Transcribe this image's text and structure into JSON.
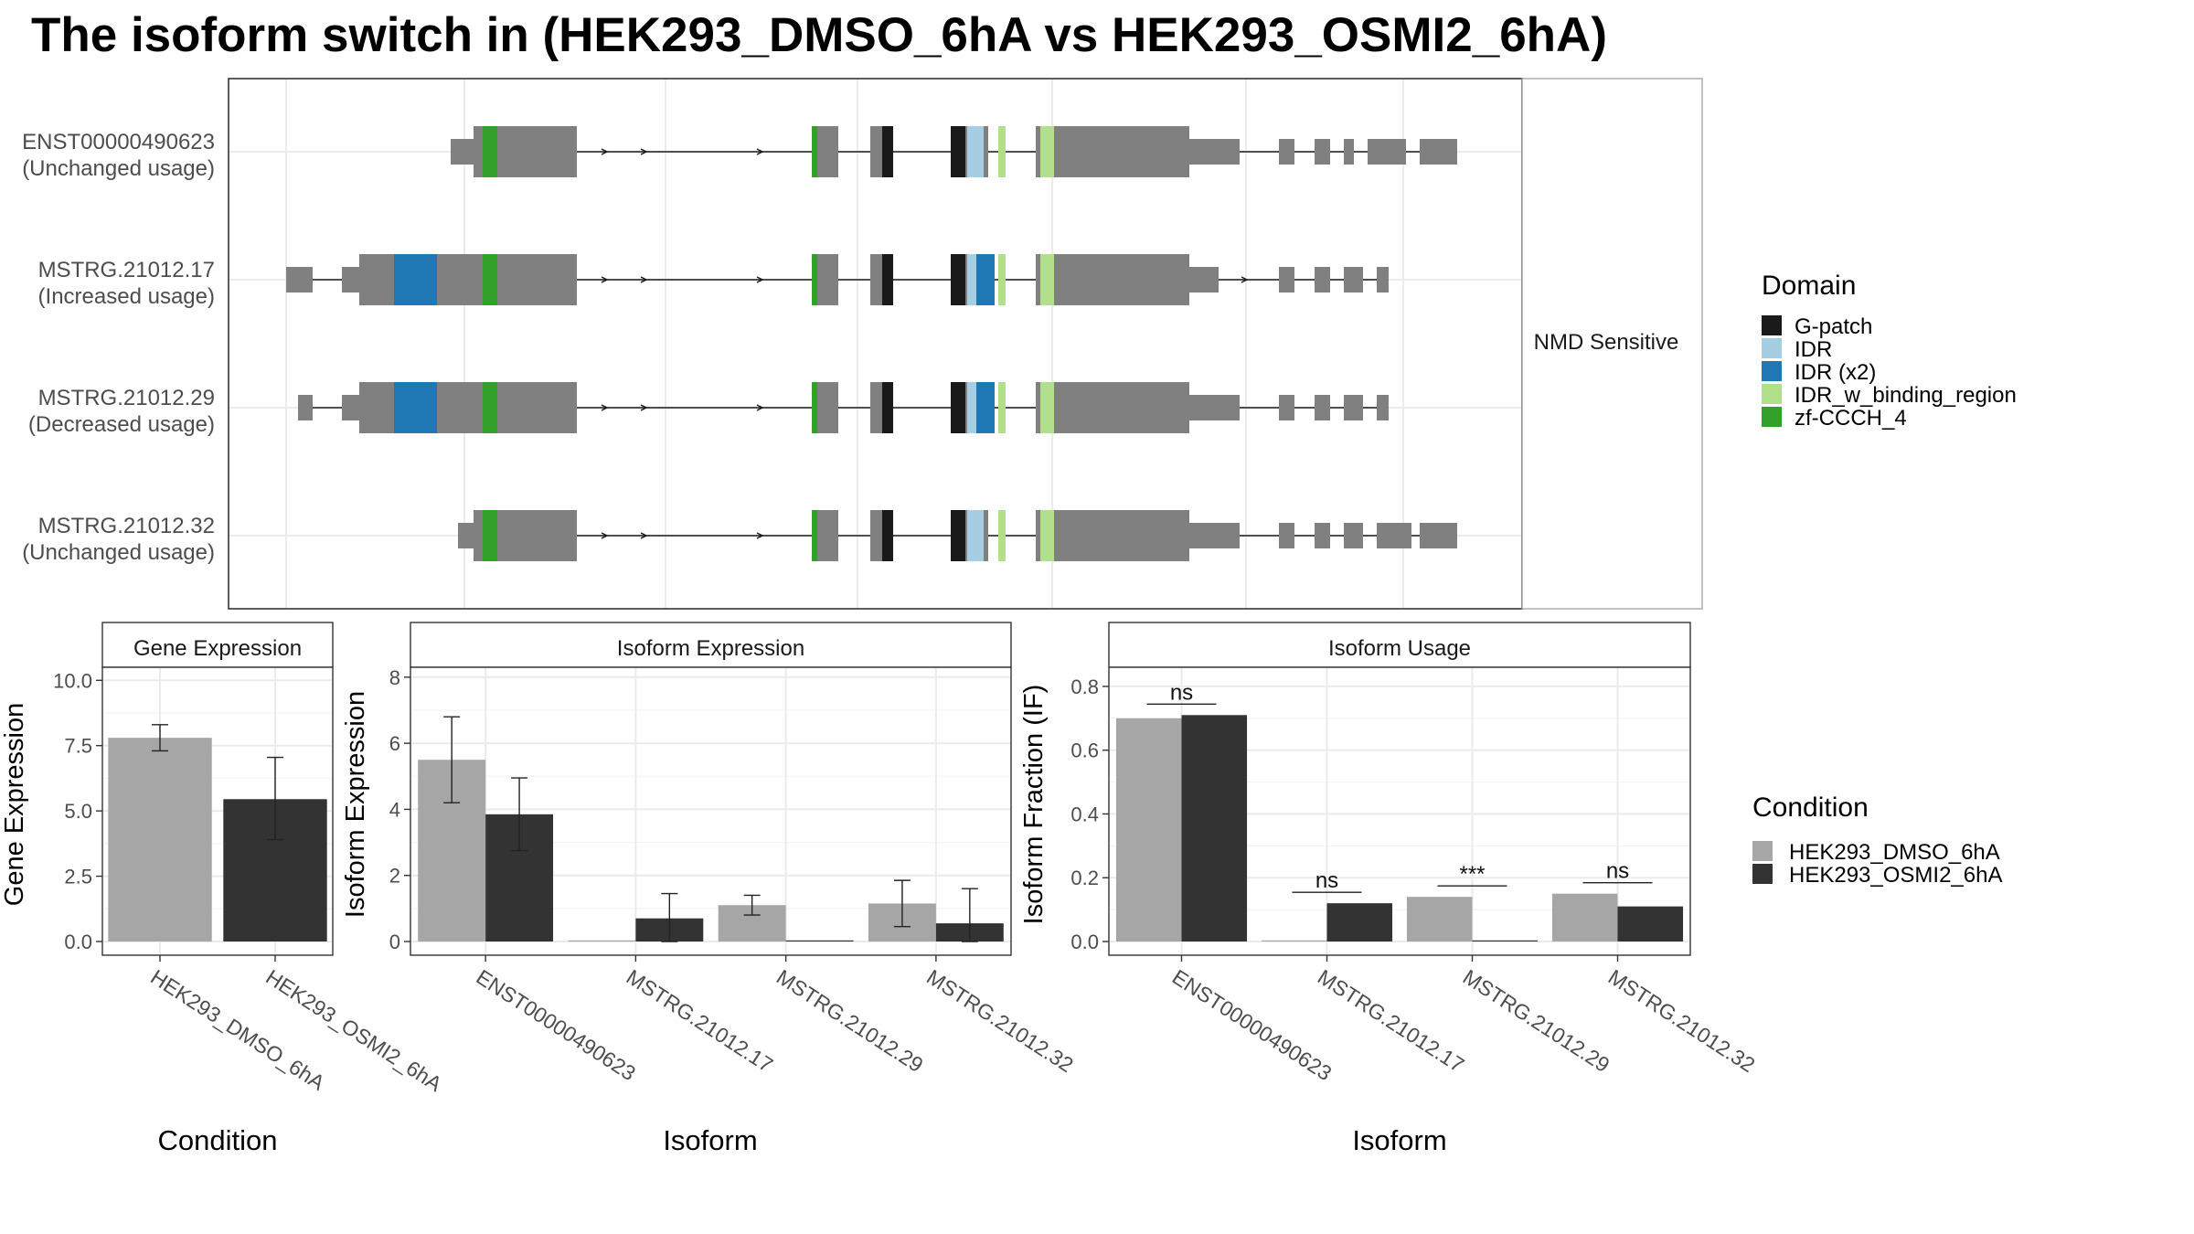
{
  "title": "The isoform switch in  (HEK293_DMSO_6hA vs HEK293_OSMI2_6hA)",
  "colors": {
    "exon": "#808080",
    "G-patch": "#1a1a1a",
    "IDR": "#a6cee3",
    "IDR (x2)": "#1f78b4",
    "IDR_w_binding_region": "#b2df8a",
    "zf-CCCH_4": "#33a02c",
    "cond1": "#a6a6a6",
    "cond2": "#333333"
  },
  "chart_data": [
    {
      "type": "gene-structure",
      "strip_label": "NMD Sensitive",
      "legend_title": "Domain",
      "legend": [
        "G-patch",
        "IDR",
        "IDR (x2)",
        "IDR_w_binding_region",
        "zf-CCCH_4"
      ],
      "transcripts": [
        {
          "id": "ENST00000490623",
          "usage": "(Unchanged usage)",
          "exons": [
            {
              "s": 180,
              "e": 205,
              "h": "u"
            },
            {
              "s": 205,
              "e": 318,
              "h": "c"
            },
            {
              "s": 575,
              "e": 604,
              "h": "c"
            },
            {
              "s": 639,
              "e": 664,
              "h": "c"
            },
            {
              "s": 727,
              "e": 768,
              "h": "c"
            },
            {
              "s": 820,
              "e": 874,
              "h": "c"
            },
            {
              "s": 874,
              "e": 896,
              "h": "c"
            },
            {
              "s": 896,
              "e": 988,
              "h": "c"
            },
            {
              "s": 988,
              "e": 1043,
              "h": "u"
            },
            {
              "s": 1086,
              "e": 1103,
              "h": "u"
            },
            {
              "s": 1125,
              "e": 1142,
              "h": "u"
            },
            {
              "s": 1157,
              "e": 1168,
              "h": "u"
            },
            {
              "s": 1183,
              "e": 1225,
              "h": "u"
            },
            {
              "s": 1240,
              "e": 1281,
              "h": "u"
            }
          ],
          "domains": [
            {
              "s": 215,
              "e": 231,
              "n": "zf-CCCH_4"
            },
            {
              "s": 575,
              "e": 581,
              "n": "zf-CCCH_4"
            },
            {
              "s": 652,
              "e": 664,
              "n": "G-patch"
            },
            {
              "s": 727,
              "e": 743,
              "n": "G-patch"
            },
            {
              "s": 745,
              "e": 763,
              "n": "IDR"
            },
            {
              "s": 779,
              "e": 787,
              "n": "IDR_w_binding_region"
            },
            {
              "s": 825,
              "e": 840,
              "n": "IDR_w_binding_region"
            }
          ],
          "arrows": [
            270,
            308,
            350,
            393,
            520
          ]
        },
        {
          "id": "MSTRG.21012.17",
          "usage": "(Increased usage)",
          "exons": [
            {
              "s": 0,
              "e": 29,
              "h": "u"
            },
            {
              "s": 61,
              "e": 80,
              "h": "u"
            },
            {
              "s": 80,
              "e": 318,
              "h": "c"
            },
            {
              "s": 575,
              "e": 604,
              "h": "c"
            },
            {
              "s": 639,
              "e": 664,
              "h": "c"
            },
            {
              "s": 727,
              "e": 768,
              "h": "c"
            },
            {
              "s": 820,
              "e": 874,
              "h": "c"
            },
            {
              "s": 874,
              "e": 896,
              "h": "c"
            },
            {
              "s": 896,
              "e": 988,
              "h": "c"
            },
            {
              "s": 988,
              "e": 1020,
              "h": "u"
            },
            {
              "s": 1086,
              "e": 1103,
              "h": "u"
            },
            {
              "s": 1125,
              "e": 1142,
              "h": "u"
            },
            {
              "s": 1157,
              "e": 1178,
              "h": "u"
            },
            {
              "s": 1193,
              "e": 1206,
              "h": "u"
            }
          ],
          "domains": [
            {
              "s": 118,
              "e": 165,
              "n": "IDR (x2)"
            },
            {
              "s": 215,
              "e": 231,
              "n": "zf-CCCH_4"
            },
            {
              "s": 575,
              "e": 581,
              "n": "zf-CCCH_4"
            },
            {
              "s": 652,
              "e": 664,
              "n": "G-patch"
            },
            {
              "s": 727,
              "e": 743,
              "n": "G-patch"
            },
            {
              "s": 745,
              "e": 755,
              "n": "IDR"
            },
            {
              "s": 755,
              "e": 775,
              "n": "IDR (x2)"
            },
            {
              "s": 779,
              "e": 787,
              "n": "IDR_w_binding_region"
            },
            {
              "s": 825,
              "e": 840,
              "n": "IDR_w_binding_region"
            }
          ],
          "arrows": [
            270,
            308,
            350,
            393,
            520,
            1050
          ]
        },
        {
          "id": "MSTRG.21012.29",
          "usage": "(Decreased usage)",
          "exons": [
            {
              "s": 13,
              "e": 29,
              "h": "u"
            },
            {
              "s": 61,
              "e": 80,
              "h": "u"
            },
            {
              "s": 80,
              "e": 318,
              "h": "c"
            },
            {
              "s": 575,
              "e": 604,
              "h": "c"
            },
            {
              "s": 639,
              "e": 664,
              "h": "c"
            },
            {
              "s": 727,
              "e": 768,
              "h": "c"
            },
            {
              "s": 820,
              "e": 874,
              "h": "c"
            },
            {
              "s": 874,
              "e": 896,
              "h": "c"
            },
            {
              "s": 896,
              "e": 988,
              "h": "c"
            },
            {
              "s": 988,
              "e": 1043,
              "h": "u"
            },
            {
              "s": 1086,
              "e": 1103,
              "h": "u"
            },
            {
              "s": 1125,
              "e": 1142,
              "h": "u"
            },
            {
              "s": 1157,
              "e": 1178,
              "h": "u"
            },
            {
              "s": 1193,
              "e": 1206,
              "h": "u"
            }
          ],
          "domains": [
            {
              "s": 118,
              "e": 165,
              "n": "IDR (x2)"
            },
            {
              "s": 215,
              "e": 231,
              "n": "zf-CCCH_4"
            },
            {
              "s": 575,
              "e": 581,
              "n": "zf-CCCH_4"
            },
            {
              "s": 652,
              "e": 664,
              "n": "G-patch"
            },
            {
              "s": 727,
              "e": 743,
              "n": "G-patch"
            },
            {
              "s": 745,
              "e": 755,
              "n": "IDR"
            },
            {
              "s": 755,
              "e": 775,
              "n": "IDR (x2)"
            },
            {
              "s": 779,
              "e": 787,
              "n": "IDR_w_binding_region"
            },
            {
              "s": 825,
              "e": 840,
              "n": "IDR_w_binding_region"
            }
          ],
          "arrows": [
            270,
            308,
            350,
            393,
            520
          ]
        },
        {
          "id": "MSTRG.21012.32",
          "usage": "(Unchanged usage)",
          "exons": [
            {
              "s": 188,
              "e": 205,
              "h": "u"
            },
            {
              "s": 205,
              "e": 318,
              "h": "c"
            },
            {
              "s": 575,
              "e": 604,
              "h": "c"
            },
            {
              "s": 639,
              "e": 664,
              "h": "c"
            },
            {
              "s": 727,
              "e": 768,
              "h": "c"
            },
            {
              "s": 820,
              "e": 874,
              "h": "c"
            },
            {
              "s": 874,
              "e": 896,
              "h": "c"
            },
            {
              "s": 896,
              "e": 988,
              "h": "c"
            },
            {
              "s": 988,
              "e": 1043,
              "h": "u"
            },
            {
              "s": 1086,
              "e": 1103,
              "h": "u"
            },
            {
              "s": 1125,
              "e": 1142,
              "h": "u"
            },
            {
              "s": 1157,
              "e": 1178,
              "h": "u"
            },
            {
              "s": 1193,
              "e": 1231,
              "h": "u"
            },
            {
              "s": 1240,
              "e": 1281,
              "h": "u"
            }
          ],
          "domains": [
            {
              "s": 215,
              "e": 231,
              "n": "zf-CCCH_4"
            },
            {
              "s": 575,
              "e": 581,
              "n": "zf-CCCH_4"
            },
            {
              "s": 652,
              "e": 664,
              "n": "G-patch"
            },
            {
              "s": 727,
              "e": 743,
              "n": "G-patch"
            },
            {
              "s": 745,
              "e": 763,
              "n": "IDR"
            },
            {
              "s": 779,
              "e": 787,
              "n": "IDR_w_binding_region"
            },
            {
              "s": 825,
              "e": 840,
              "n": "IDR_w_binding_region"
            }
          ],
          "arrows": [
            270,
            308,
            350,
            393,
            520
          ]
        }
      ]
    },
    {
      "type": "bar",
      "strip_title": "Gene Expression",
      "ylabel": "Gene Expression",
      "xlabel": "Condition",
      "ylim": [
        0,
        10.5
      ],
      "yticks": [
        "0.0",
        "2.5",
        "5.0",
        "7.5",
        "10.0"
      ],
      "categories": [
        "HEK293_DMSO_6hA",
        "HEK293_OSMI2_6hA"
      ],
      "values": [
        7.8,
        5.45
      ],
      "error": [
        [
          7.3,
          8.3
        ],
        [
          3.9,
          7.05
        ]
      ]
    },
    {
      "type": "bar",
      "strip_title": "Isoform Expression",
      "ylabel": "Isoform Expression",
      "xlabel": "Isoform",
      "ylim": [
        0,
        8.3
      ],
      "yticks": [
        "0",
        "2",
        "4",
        "6",
        "8"
      ],
      "categories": [
        "ENST00000490623",
        "MSTRG.21012.17",
        "MSTRG.21012.29",
        "MSTRG.21012.32"
      ],
      "series": [
        {
          "values": [
            5.5,
            0.0,
            1.1,
            1.15
          ],
          "error": [
            [
              4.2,
              6.8
            ],
            [
              0,
              0
            ],
            [
              0.8,
              1.4
            ],
            [
              0.45,
              1.85
            ]
          ]
        },
        {
          "values": [
            3.85,
            0.7,
            0.0,
            0.55
          ],
          "error": [
            [
              2.75,
              4.95
            ],
            [
              0,
              1.45
            ],
            [
              0,
              0
            ],
            [
              0,
              1.6
            ]
          ]
        }
      ]
    },
    {
      "type": "bar",
      "strip_title": "Isoform Usage",
      "ylabel": "Isoform Fraction (IF)",
      "xlabel": "Isoform",
      "ylim": [
        0,
        0.86
      ],
      "yticks": [
        "0.0",
        "0.2",
        "0.4",
        "0.6",
        "0.8"
      ],
      "categories": [
        "ENST00000490623",
        "MSTRG.21012.17",
        "MSTRG.21012.29",
        "MSTRG.21012.32"
      ],
      "series": [
        {
          "values": [
            0.7,
            0.0,
            0.14,
            0.15
          ]
        },
        {
          "values": [
            0.71,
            0.12,
            0.0,
            0.11
          ]
        }
      ],
      "significance": [
        "ns",
        "ns",
        "***",
        "ns"
      ]
    }
  ],
  "condition_legend": {
    "title": "Condition",
    "items": [
      "HEK293_DMSO_6hA",
      "HEK293_OSMI2_6hA"
    ]
  }
}
